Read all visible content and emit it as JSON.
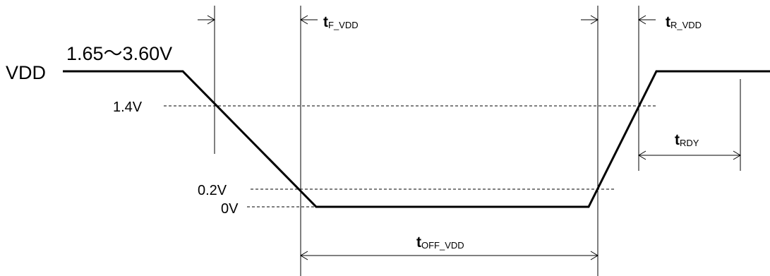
{
  "signal": {
    "name": "VDD",
    "range_label": "1.65〜3.60V"
  },
  "levels": {
    "v14": "1.4V",
    "v02": "0.2V",
    "v0": "0V"
  },
  "timings": {
    "t_f_vdd": {
      "main": "t",
      "sub": "F_VDD"
    },
    "t_r_vdd": {
      "main": "t",
      "sub": "R_VDD"
    },
    "t_rdy": {
      "main": "t",
      "sub": "RDY"
    },
    "t_off_vdd": {
      "main": "t",
      "sub": "OFF_VDD"
    }
  }
}
